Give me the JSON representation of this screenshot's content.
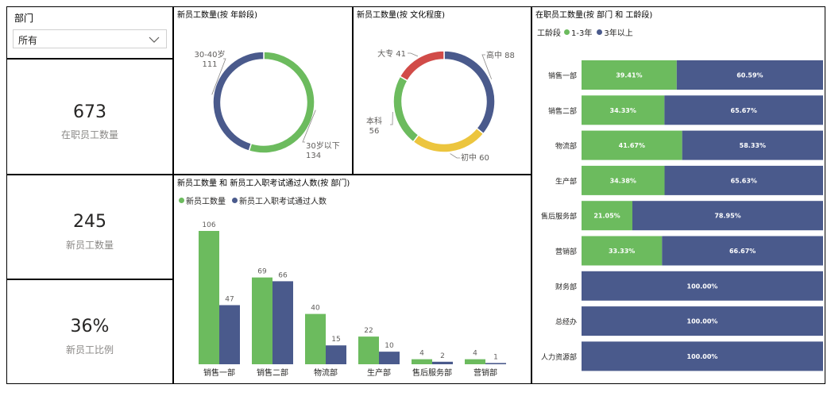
{
  "colors": {
    "green": "#6cbb5e",
    "navy": "#4a5a8c",
    "red": "#d14b48",
    "yellow": "#ecc53e",
    "grey_text": "#605e5c"
  },
  "slicer": {
    "title": "部门",
    "value": "所有"
  },
  "kpis": [
    {
      "value": "673",
      "label": "在职员工数量"
    },
    {
      "value": "245",
      "label": "新员工数量"
    },
    {
      "value": "36%",
      "label": "新员工比例"
    }
  ],
  "charts": {
    "age_title": "新员工数量(按 年龄段)",
    "edu_title": "新员工数量(按 文化程度)",
    "dept_title": "新员工数量 和 新员工入职考试通过人数(按 部门)",
    "tenure_title": "在职员工数量(按 部门 和 工龄段)"
  },
  "bar_legend": {
    "new": "新员工数量",
    "passed": "新员工入职考试通过人数"
  },
  "tenure_legend": {
    "title": "工龄段",
    "s1": "1-3年",
    "s2": "3年以上"
  },
  "chart_data": [
    {
      "type": "pie",
      "title": "新员工数量(按 年龄段)",
      "slices": [
        {
          "label": "30岁以下",
          "value": 134,
          "color": "#6cbb5e"
        },
        {
          "label": "30-40岁",
          "value": 111,
          "color": "#4a5a8c"
        }
      ]
    },
    {
      "type": "pie",
      "title": "新员工数量(按 文化程度)",
      "slices": [
        {
          "label": "高中",
          "value": 88,
          "color": "#4a5a8c"
        },
        {
          "label": "初中",
          "value": 60,
          "color": "#ecc53e"
        },
        {
          "label": "本科",
          "value": 56,
          "color": "#6cbb5e"
        },
        {
          "label": "大专",
          "value": 41,
          "color": "#d14b48"
        }
      ]
    },
    {
      "type": "bar",
      "title": "新员工数量 和 新员工入职考试通过人数(按 部门)",
      "categories": [
        "销售一部",
        "销售二部",
        "物流部",
        "生产部",
        "售后服务部",
        "营销部"
      ],
      "series": [
        {
          "name": "新员工数量",
          "values": [
            106,
            69,
            40,
            22,
            4,
            4
          ],
          "color": "#6cbb5e"
        },
        {
          "name": "新员工入职考试通过人数",
          "values": [
            47,
            66,
            15,
            10,
            2,
            1
          ],
          "color": "#4a5a8c"
        }
      ],
      "ylim": [
        0,
        106
      ]
    },
    {
      "type": "bar",
      "title": "在职员工数量(按 部门 和 工龄段)",
      "orientation": "horizontal",
      "stacked": "100%",
      "categories": [
        "销售一部",
        "销售二部",
        "物流部",
        "生产部",
        "售后服务部",
        "营销部",
        "财务部",
        "总经办",
        "人力资源部"
      ],
      "series": [
        {
          "name": "1-3年",
          "values": [
            39.41,
            34.33,
            41.67,
            34.38,
            21.05,
            33.33,
            0,
            0,
            0
          ],
          "color": "#6cbb5e"
        },
        {
          "name": "3年以上",
          "values": [
            60.59,
            65.67,
            58.33,
            65.63,
            78.95,
            66.67,
            100,
            100,
            100
          ],
          "color": "#4a5a8c"
        }
      ],
      "xlim": [
        0,
        100
      ]
    }
  ]
}
